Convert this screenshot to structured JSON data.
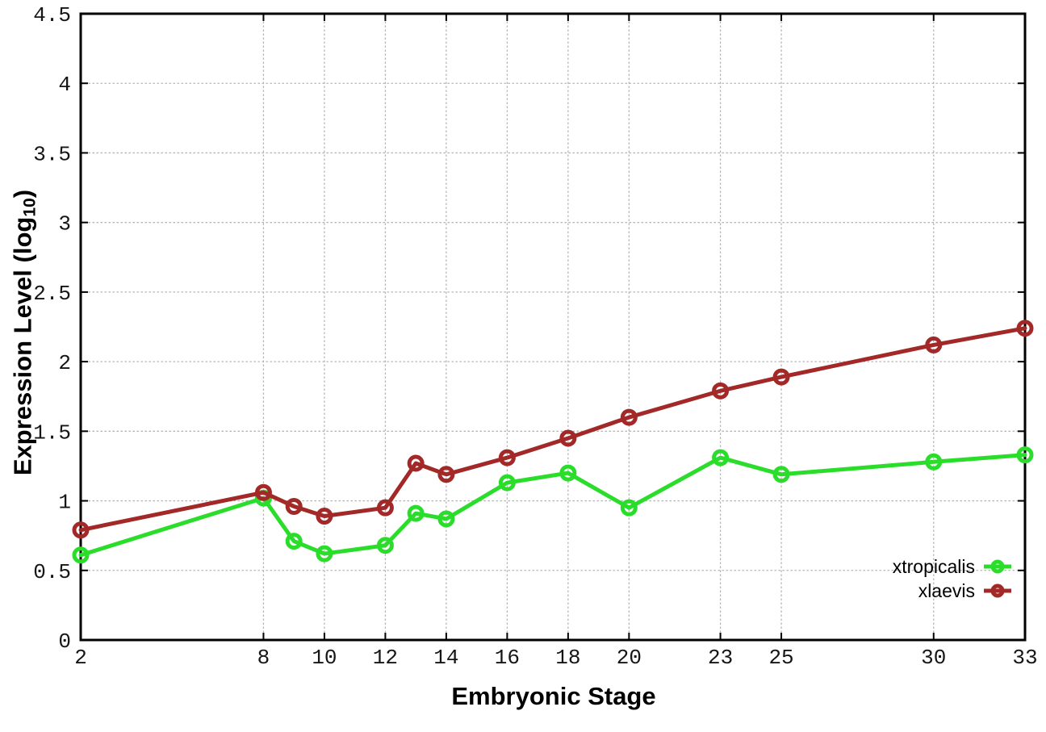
{
  "figure": {
    "xlabel": "Embryonic Stage",
    "ylabel": {
      "main": "Expression Level (log",
      "sub": "10",
      "end": ")"
    },
    "background_color": "#ffffff",
    "grid_color": "#b5b5b5",
    "axis_color": "#000000"
  },
  "chart_data": {
    "type": "line",
    "title": "",
    "xlabel": "Embryonic Stage",
    "ylabel": "Expression Level (log10)",
    "xlim": [
      2,
      33
    ],
    "ylim": [
      0,
      4.5
    ],
    "grid": true,
    "legend_position": "bottom-right",
    "x_tick_values": [
      2,
      8,
      10,
      12,
      14,
      16,
      18,
      20,
      23,
      25,
      30,
      33
    ],
    "x_tick_labels": [
      "2",
      "8",
      "10",
      "12",
      "14",
      "16",
      "18",
      "20",
      "23",
      "25",
      "30",
      "33"
    ],
    "y_tick_values": [
      0,
      0.5,
      1,
      1.5,
      2,
      2.5,
      3,
      3.5,
      4,
      4.5
    ],
    "y_tick_labels": [
      "0",
      "0.5",
      "1",
      "1.5",
      "2",
      "2.5",
      "3",
      "3.5",
      "4",
      "4.5"
    ],
    "x": [
      2,
      8,
      9,
      10,
      12,
      13,
      14,
      16,
      18,
      20,
      23,
      25,
      30,
      33
    ],
    "series": [
      {
        "name": "xtropicalis",
        "color": "#2bdd2b",
        "values": [
          0.61,
          1.02,
          0.71,
          0.62,
          0.68,
          0.91,
          0.87,
          1.13,
          1.2,
          0.95,
          1.31,
          1.19,
          1.28,
          1.33
        ]
      },
      {
        "name": "xlaevis",
        "color": "#a32828",
        "values": [
          0.79,
          1.06,
          0.96,
          0.89,
          0.95,
          1.27,
          1.19,
          1.31,
          1.45,
          1.6,
          1.79,
          1.89,
          2.12,
          2.24
        ]
      }
    ]
  }
}
